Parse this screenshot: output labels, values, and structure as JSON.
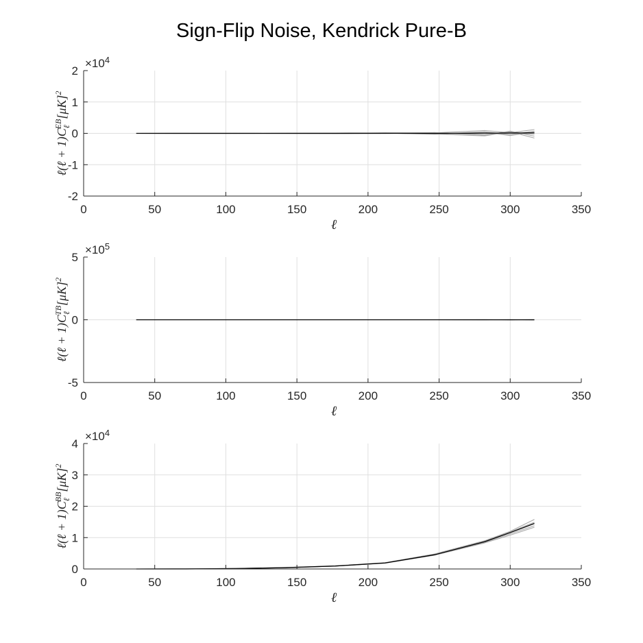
{
  "figure": {
    "title": "Sign-Flip Noise, Kendrick Pure-B"
  },
  "chart_data": [
    {
      "type": "line",
      "panel": "EB",
      "xlabel": "ℓ",
      "ylabel": {
        "prefix": "ℓ(ℓ + 1)C",
        "sub": "ℓ",
        "sup": "EB",
        "unit": "[μK]",
        "unit_sup": "2"
      },
      "xlim": [
        0,
        350
      ],
      "ylim": [
        -20000,
        20000
      ],
      "xticks": [
        0,
        50,
        100,
        150,
        200,
        250,
        300,
        350
      ],
      "yticks": [
        -20000,
        -10000,
        0,
        10000,
        20000
      ],
      "ytick_labels": [
        "-2",
        "-1",
        "0",
        "1",
        "2"
      ],
      "exponent_label": "×10",
      "exponent_power": "4",
      "grid": true,
      "x": [
        37,
        72,
        107,
        142,
        177,
        212,
        247,
        282,
        300,
        317
      ],
      "series": [
        {
          "color": "#a8a8a8",
          "values": [
            0,
            10,
            -15,
            20,
            60,
            -40,
            150,
            900,
            200,
            1200
          ]
        },
        {
          "color": "#a8a8a8",
          "values": [
            0,
            -10,
            20,
            -20,
            -50,
            120,
            -200,
            -800,
            500,
            -1500
          ]
        },
        {
          "color": "#a8a8a8",
          "values": [
            0,
            5,
            -5,
            30,
            40,
            100,
            -300,
            500,
            -400,
            700
          ]
        },
        {
          "color": "#a8a8a8",
          "values": [
            0,
            -5,
            10,
            -25,
            -80,
            -60,
            250,
            -600,
            700,
            -900
          ]
        },
        {
          "color": "#a8a8a8",
          "values": [
            0,
            15,
            -10,
            10,
            90,
            30,
            -120,
            300,
            -700,
            400
          ]
        },
        {
          "color": "#a8a8a8",
          "values": [
            0,
            -12,
            8,
            -15,
            -30,
            150,
            180,
            -400,
            300,
            -300
          ]
        },
        {
          "color": "#000000",
          "values": [
            0,
            2,
            1,
            3,
            5,
            20,
            -10,
            50,
            100,
            150
          ]
        }
      ]
    },
    {
      "type": "line",
      "panel": "TB",
      "xlabel": "ℓ",
      "ylabel": {
        "prefix": "ℓ(ℓ + 1)C",
        "sub": "ℓ",
        "sup": "TB",
        "unit": "[μK]",
        "unit_sup": "2"
      },
      "xlim": [
        0,
        350
      ],
      "ylim": [
        -500000,
        500000
      ],
      "xticks": [
        0,
        50,
        100,
        150,
        200,
        250,
        300,
        350
      ],
      "yticks": [
        -500000,
        0,
        500000
      ],
      "ytick_labels": [
        "-5",
        "0",
        "5"
      ],
      "exponent_label": "×10",
      "exponent_power": "5",
      "grid": true,
      "x": [
        37,
        72,
        107,
        142,
        177,
        212,
        247,
        282,
        300,
        317
      ],
      "series": [
        {
          "color": "#a8a8a8",
          "values": [
            0,
            0,
            0,
            0,
            0,
            0,
            0,
            1000,
            -1500,
            2000
          ]
        },
        {
          "color": "#a8a8a8",
          "values": [
            0,
            0,
            0,
            0,
            0,
            0,
            0,
            -1200,
            1000,
            -1800
          ]
        },
        {
          "color": "#000000",
          "values": [
            0,
            0,
            0,
            0,
            0,
            0,
            0,
            0,
            0,
            0
          ]
        }
      ]
    },
    {
      "type": "line",
      "panel": "BB",
      "xlabel": "ℓ",
      "ylabel": {
        "prefix": "ℓ(ℓ + 1)C",
        "sub": "ℓ",
        "sup": "BB",
        "unit": "[μK]",
        "unit_sup": "2"
      },
      "xlim": [
        0,
        350
      ],
      "ylim": [
        0,
        40000
      ],
      "xticks": [
        0,
        50,
        100,
        150,
        200,
        250,
        300,
        350
      ],
      "yticks": [
        0,
        10000,
        20000,
        30000,
        40000
      ],
      "ytick_labels": [
        "0",
        "1",
        "2",
        "3",
        "4"
      ],
      "exponent_label": "×10",
      "exponent_power": "4",
      "grid": true,
      "x": [
        37,
        72,
        107,
        142,
        177,
        212,
        247,
        282,
        300,
        317
      ],
      "series": [
        {
          "color": "#a8a8a8",
          "values": [
            0,
            20,
            150,
            450,
            1000,
            2000,
            4800,
            9000,
            12000,
            15800
          ]
        },
        {
          "color": "#a8a8a8",
          "values": [
            0,
            15,
            120,
            400,
            900,
            1850,
            4400,
            8300,
            10800,
            13300
          ]
        },
        {
          "color": "#a8a8a8",
          "values": [
            0,
            18,
            140,
            430,
            950,
            1950,
            4600,
            8800,
            11800,
            14900
          ]
        },
        {
          "color": "#a8a8a8",
          "values": [
            0,
            16,
            130,
            410,
            920,
            1900,
            4500,
            8500,
            11200,
            13800
          ]
        },
        {
          "color": "#000000",
          "values": [
            0,
            17,
            135,
            420,
            940,
            1920,
            4550,
            8700,
            11600,
            14500
          ]
        }
      ]
    }
  ]
}
